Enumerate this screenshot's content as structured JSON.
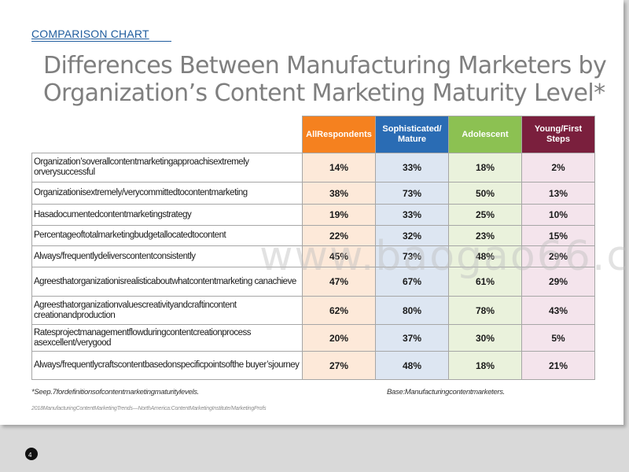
{
  "kicker": "COMPARISON CHART",
  "title": "Differences Between Manufacturing Marketers by Organization’s Content Marketing Maturity Level*",
  "table": {
    "columns": [
      {
        "label": "AllRespondents",
        "color": "#f5811f"
      },
      {
        "label": "Sophisticated/ Mature",
        "color": "#2a6cb4"
      },
      {
        "label": "Adolescent",
        "color": "#8cc152"
      },
      {
        "label": "Young/First Steps",
        "color": "#7a1f3d"
      }
    ],
    "rows": [
      {
        "label": "Organization’soverallcontentmarketingapproachisextremely orverysuccessful",
        "values": [
          "14%",
          "33%",
          "18%",
          "2%"
        ]
      },
      {
        "label": "Organizationisextremely/verycommittedtocontentmarketing",
        "values": [
          "38%",
          "73%",
          "50%",
          "13%"
        ]
      },
      {
        "label": "Hasadocumentedcontentmarketingstrategy",
        "values": [
          "19%",
          "33%",
          "25%",
          "10%"
        ]
      },
      {
        "label": "Percentageoftotalmarketingbudgetallocatedtocontent",
        "values": [
          "22%",
          "32%",
          "23%",
          "15%"
        ]
      },
      {
        "label": "Always/frequentlydeliverscontentconsistently",
        "values": [
          "45%",
          "73%",
          "48%",
          "29%"
        ]
      },
      {
        "label": "Agreesthatorganizationisrealisticaboutwhatcontentmarketing canachieve",
        "values": [
          "47%",
          "67%",
          "61%",
          "29%"
        ]
      },
      {
        "label": "Agreesthatorganizationvaluescreativityandcraftincontent creationandproduction",
        "values": [
          "62%",
          "80%",
          "78%",
          "43%"
        ]
      },
      {
        "label": "Ratesprojectmanagementflowduringcontentcreationprocess asexcellent/verygood",
        "values": [
          "20%",
          "37%",
          "30%",
          "5%"
        ]
      },
      {
        "label": "Always/frequentlycraftscontentbasedonspecificpointsofthe buyer’sjourney",
        "values": [
          "27%",
          "48%",
          "18%",
          "21%"
        ]
      }
    ]
  },
  "footnote": "*Seep.7fordefinitionsofcontentmarketingmaturitylevels.",
  "base": "Base:Manufacturingcontentmarketers.",
  "source": "2018ManufacturingContentMarketingTrends—NorthAmerica:ContentMarketingInstitute/MarketingProfs",
  "watermark": "www.baogao66.com",
  "page_number": "4"
}
